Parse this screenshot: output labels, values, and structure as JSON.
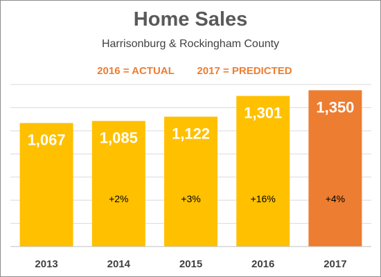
{
  "chart_data": {
    "type": "bar",
    "title": "Home Sales",
    "subtitle": "Harrisonburg & Rockingham County",
    "annotations": {
      "actual": "2016 = ACTUAL",
      "predicted": "2017 = PREDICTED"
    },
    "categories": [
      "2013",
      "2014",
      "2015",
      "2016",
      "2017"
    ],
    "values": [
      1067,
      1085,
      1122,
      1301,
      1350
    ],
    "value_labels": [
      "1,067",
      "1,085",
      "1,122",
      "1,301",
      "1,350"
    ],
    "change_labels": [
      "",
      "+2%",
      "+3%",
      "+16%",
      "+4%"
    ],
    "bar_colors": [
      "#ffc000",
      "#ffc000",
      "#ffc000",
      "#ffc000",
      "#ed7d31"
    ],
    "annotation_color": "#ed7d31",
    "ylim": [
      0,
      1400
    ],
    "gridlines": true,
    "xlabel": "",
    "ylabel": ""
  }
}
